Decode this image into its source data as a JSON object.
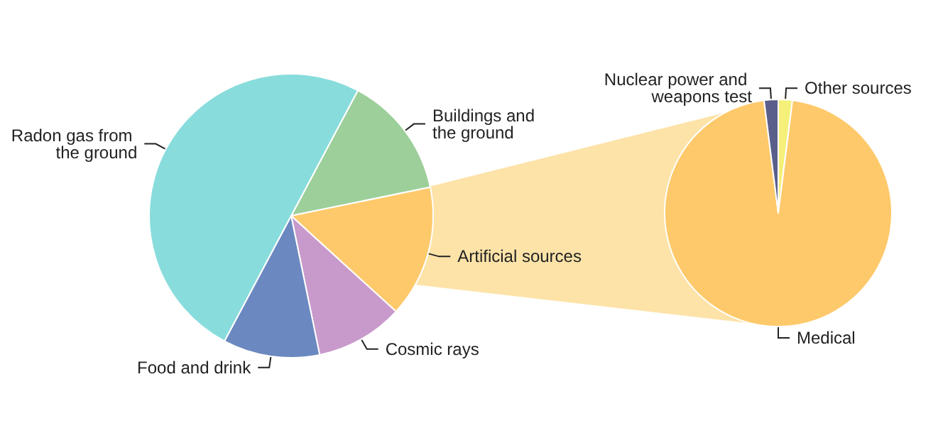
{
  "chart_data": [
    {
      "type": "pie",
      "categories": [
        "Buildings and the ground",
        "Artificial sources",
        "Cosmic rays",
        "Food and drink",
        "Radon gas from the ground"
      ],
      "values": [
        14,
        15,
        10,
        11,
        50
      ],
      "colors": [
        "#9dcf9a",
        "#fec96a",
        "#c89acb",
        "#6b88c0",
        "#88dcdc"
      ]
    },
    {
      "type": "pie",
      "categories": [
        "Other sources",
        "Medical",
        "Nuclear power and weapons test"
      ],
      "values": [
        2,
        96,
        2
      ],
      "colors": [
        "#f5f07a",
        "#fec96a",
        "#5a5f8a"
      ]
    }
  ]
}
